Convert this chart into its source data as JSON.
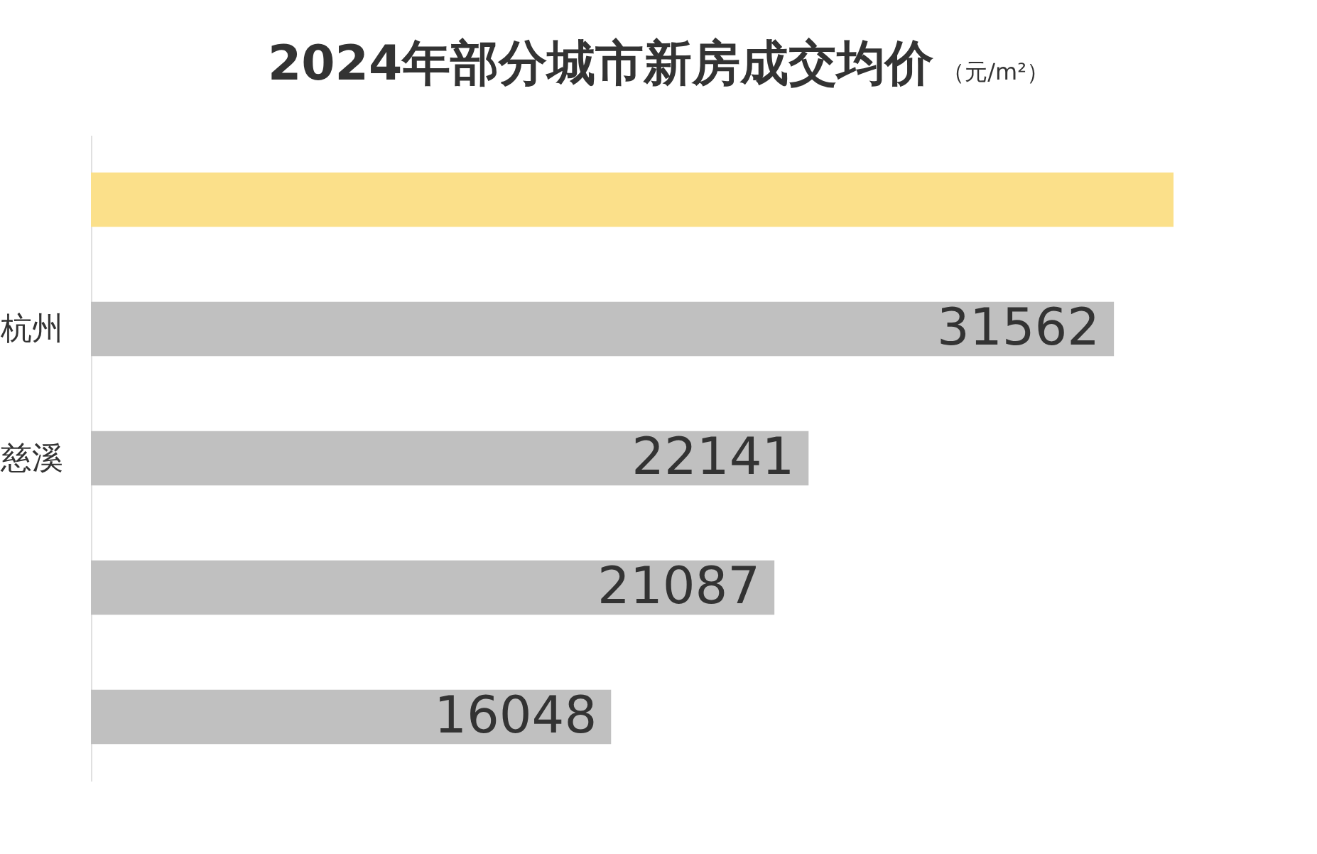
{
  "chart_data": {
    "type": "bar",
    "orientation": "horizontal",
    "title": "2024年部分城市新房成交均价",
    "subtitle": "（元/m²）",
    "categories": [
      null,
      "杭州",
      "慈溪",
      null,
      null
    ],
    "values": [
      33400,
      31562,
      22141,
      21087,
      16048
    ],
    "colors": [
      "#fbe08a",
      "#c0c0c0",
      "#c0c0c0",
      "#c0c0c0",
      "#c0c0c0"
    ],
    "value_labels": [
      null,
      "31562",
      "22141",
      "21087",
      "16048"
    ]
  }
}
